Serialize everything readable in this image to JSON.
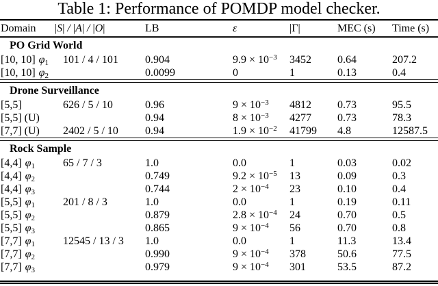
{
  "title": "Table 1: Performance of POMDP model checker.",
  "table": {
    "header": {
      "domain": "Domain",
      "bar": "|",
      "slash": "/",
      "s": "S",
      "a": "A",
      "o": "O",
      "lb": "LB",
      "epsilon": "ε",
      "gamma": "|Γ|",
      "mec": "MEC (s)",
      "time": "Time (s)"
    },
    "sections": [
      {
        "heading": "PO Grid World",
        "rows": [
          {
            "domain": "[10, 10]",
            "phi": "φ",
            "phi_sub": "1",
            "sizes": "101 / 4 / 101",
            "lb": "0.904",
            "eps_base": "9.9 × 10",
            "eps_exp": "−3",
            "gamma": "3452",
            "mec": "0.64",
            "time": "207.2"
          },
          {
            "domain": "[10, 10]",
            "phi": "φ",
            "phi_sub": "2",
            "sizes": "",
            "lb": "0.0099",
            "eps_base": "0",
            "eps_exp": "",
            "gamma": "1",
            "mec": "0.13",
            "time": "0.4"
          }
        ]
      },
      {
        "heading": "Drone Surveillance",
        "rows": [
          {
            "domain": "[5,5]",
            "phi": "",
            "phi_sub": "",
            "sizes": "626 / 5 / 10",
            "lb": "0.96",
            "eps_base": "9 × 10",
            "eps_exp": "−3",
            "gamma": "4812",
            "mec": "0.73",
            "time": "95.5"
          },
          {
            "domain": "[5,5] (U)",
            "phi": "",
            "phi_sub": "",
            "sizes": "",
            "lb": "0.94",
            "eps_base": "8 × 10",
            "eps_exp": "−3",
            "gamma": "4277",
            "mec": "0.73",
            "time": "78.3"
          },
          {
            "domain": "[7,7] (U)",
            "phi": "",
            "phi_sub": "",
            "sizes": "2402 / 5 / 10",
            "lb": "0.94",
            "eps_base": "1.9 × 10",
            "eps_exp": "−2",
            "gamma": "41799",
            "mec": "4.8",
            "time": "12587.5"
          }
        ]
      },
      {
        "heading": "Rock Sample",
        "rows": [
          {
            "domain": "[4,4]",
            "phi": "φ",
            "phi_sub": "1",
            "sizes": "65 / 7 / 3",
            "lb": "1.0",
            "eps_base": "0.0",
            "eps_exp": "",
            "gamma": "1",
            "mec": "0.03",
            "time": "0.02"
          },
          {
            "domain": "[4,4]",
            "phi": "φ",
            "phi_sub": "2",
            "sizes": "",
            "lb": "0.749",
            "eps_base": "9.2 × 10",
            "eps_exp": "−5",
            "gamma": "13",
            "mec": "0.09",
            "time": "0.3"
          },
          {
            "domain": "[4,4]",
            "phi": "φ",
            "phi_sub": "3",
            "sizes": "",
            "lb": "0.744",
            "eps_base": "2 × 10",
            "eps_exp": "−4",
            "gamma": "23",
            "mec": "0.10",
            "time": "0.4"
          },
          {
            "domain": "[5,5]",
            "phi": "φ",
            "phi_sub": "1",
            "sizes": "201 / 8 / 3",
            "lb": "1.0",
            "eps_base": "0.0",
            "eps_exp": "",
            "gamma": "1",
            "mec": "0.19",
            "time": "0.11"
          },
          {
            "domain": "[5,5]",
            "phi": "φ",
            "phi_sub": "2",
            "sizes": "",
            "lb": "0.879",
            "eps_base": "2.8 × 10",
            "eps_exp": "−4",
            "gamma": "24",
            "mec": "0.70",
            "time": "0.5"
          },
          {
            "domain": "[5,5]",
            "phi": "φ",
            "phi_sub": "3",
            "sizes": "",
            "lb": "0.865",
            "eps_base": "9 × 10",
            "eps_exp": "−4",
            "gamma": "56",
            "mec": "0.70",
            "time": "0.8"
          },
          {
            "domain": "[7,7]",
            "phi": "φ",
            "phi_sub": "1",
            "sizes": "12545 / 13 / 3",
            "lb": "1.0",
            "eps_base": "0.0",
            "eps_exp": "",
            "gamma": "1",
            "mec": "11.3",
            "time": "13.4"
          },
          {
            "domain": "[7,7]",
            "phi": "φ",
            "phi_sub": "2",
            "sizes": "",
            "lb": "0.990",
            "eps_base": "9 × 10",
            "eps_exp": "−4",
            "gamma": "378",
            "mec": "50.6",
            "time": "77.5"
          },
          {
            "domain": "[7,7]",
            "phi": "φ",
            "phi_sub": "3",
            "sizes": "",
            "lb": "0.979",
            "eps_base": "9 × 10",
            "eps_exp": "−4",
            "gamma": "301",
            "mec": "53.5",
            "time": "87.2"
          }
        ]
      }
    ]
  }
}
